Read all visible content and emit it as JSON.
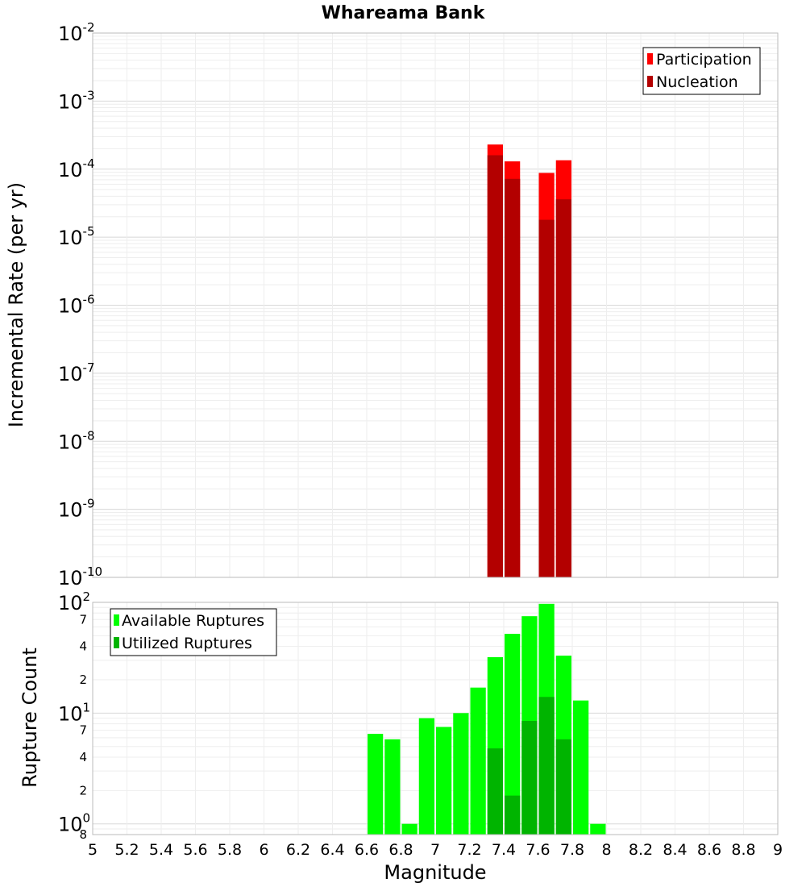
{
  "chart_data": [
    {
      "type": "bar",
      "title": "Whareama Bank",
      "ylabel": "Incremental Rate (per yr)",
      "xlabel": "",
      "y_scale": "log",
      "ylim": [
        1e-10,
        0.01
      ],
      "xlim": [
        5,
        9
      ],
      "y_ticks": [
        {
          "base": "10",
          "exp": "-10"
        },
        {
          "base": "10",
          "exp": "-9"
        },
        {
          "base": "10",
          "exp": "-8"
        },
        {
          "base": "10",
          "exp": "-7"
        },
        {
          "base": "10",
          "exp": "-6"
        },
        {
          "base": "10",
          "exp": "-5"
        },
        {
          "base": "10",
          "exp": "-4"
        },
        {
          "base": "10",
          "exp": "-3"
        },
        {
          "base": "10",
          "exp": "-2"
        }
      ],
      "grid": true,
      "legend_position": "top-right",
      "x": [
        7.35,
        7.45,
        7.65,
        7.75
      ],
      "series": [
        {
          "name": "Participation",
          "color": "#ff0000",
          "values": [
            0.00023,
            0.00013,
            8.8e-05,
            0.000135
          ]
        },
        {
          "name": "Nucleation",
          "color": "#b30000",
          "values": [
            0.00016,
            7.2e-05,
            1.8e-05,
            3.6e-05
          ]
        }
      ]
    },
    {
      "type": "bar",
      "title": "",
      "ylabel": "Rupture Count",
      "xlabel": "Magnitude",
      "y_scale": "log",
      "ylim": [
        0.8,
        100
      ],
      "xlim": [
        5,
        9
      ],
      "x_ticks": [
        "5",
        "5.2",
        "5.4",
        "5.6",
        "5.8",
        "6",
        "6.2",
        "6.4",
        "6.6",
        "6.8",
        "7",
        "7.2",
        "7.4",
        "7.6",
        "7.8",
        "8",
        "8.2",
        "8.4",
        "8.6",
        "8.8",
        "9"
      ],
      "y_major_ticks": [
        {
          "base": "10",
          "exp": "0",
          "value": 1
        },
        {
          "base": "10",
          "exp": "1",
          "value": 10
        },
        {
          "base": "10",
          "exp": "2",
          "value": 100
        }
      ],
      "y_minor_labels": [
        "2",
        "4",
        "7",
        "2",
        "4",
        "7",
        "8"
      ],
      "grid": true,
      "legend_position": "top-left",
      "x": [
        6.65,
        6.75,
        6.85,
        6.95,
        7.05,
        7.15,
        7.25,
        7.35,
        7.45,
        7.55,
        7.65,
        7.75,
        7.85,
        7.95
      ],
      "series": [
        {
          "name": "Available Ruptures",
          "color": "#00ff00",
          "values": [
            6.5,
            5.8,
            1,
            9,
            7.5,
            10,
            17,
            32,
            52,
            75,
            97,
            33,
            13,
            1
          ]
        },
        {
          "name": "Utilized Ruptures",
          "color": "#00b400",
          "values": [
            0,
            0,
            0,
            0,
            0,
            0,
            0,
            4.8,
            1.8,
            8.5,
            14,
            5.8,
            0,
            0
          ]
        }
      ]
    }
  ]
}
